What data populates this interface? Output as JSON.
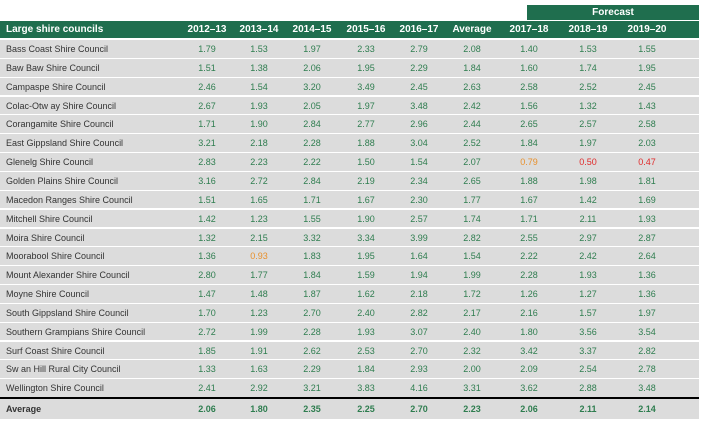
{
  "forecast_label": "Forecast",
  "header": {
    "name": "Large shire councils",
    "cols": [
      "2012–13",
      "2013–14",
      "2014–15",
      "2015–16",
      "2016–17",
      "Average",
      "2017–18",
      "2018–19",
      "2019–20"
    ]
  },
  "rows": [
    {
      "name": "Bass Coast Shire Council",
      "values": [
        "1.79",
        "1.53",
        "1.97",
        "2.33",
        "2.79",
        "2.08",
        "1.40",
        "1.53",
        "1.55"
      ]
    },
    {
      "name": "Baw  Baw  Shire Council",
      "values": [
        "1.51",
        "1.38",
        "2.06",
        "1.95",
        "2.29",
        "1.84",
        "1.60",
        "1.74",
        "1.95"
      ]
    },
    {
      "name": "Campaspe Shire Council",
      "values": [
        "2.46",
        "1.54",
        "3.20",
        "3.49",
        "2.45",
        "2.63",
        "2.58",
        "2.52",
        "2.45"
      ]
    },
    {
      "name": "Colac-Otw ay Shire Council",
      "values": [
        "2.67",
        "1.93",
        "2.05",
        "1.97",
        "3.48",
        "2.42",
        "1.56",
        "1.32",
        "1.43"
      ]
    },
    {
      "name": "Corangamite Shire Council",
      "values": [
        "1.71",
        "1.90",
        "2.84",
        "2.77",
        "2.96",
        "2.44",
        "2.65",
        "2.57",
        "2.58"
      ]
    },
    {
      "name": "East Gippsland Shire Council",
      "values": [
        "3.21",
        "2.18",
        "2.28",
        "1.88",
        "3.04",
        "2.52",
        "1.84",
        "1.97",
        "2.03"
      ]
    },
    {
      "name": "Glenelg Shire Council",
      "values": [
        "2.83",
        "2.23",
        "2.22",
        "1.50",
        "1.54",
        "2.07",
        "0.79",
        "0.50",
        "0.47"
      ],
      "flags": [
        "",
        "",
        "",
        "",
        "",
        "",
        "orange",
        "red",
        "red"
      ]
    },
    {
      "name": "Golden Plains Shire Council",
      "values": [
        "3.16",
        "2.72",
        "2.84",
        "2.19",
        "2.34",
        "2.65",
        "1.88",
        "1.98",
        "1.81"
      ]
    },
    {
      "name": "Macedon Ranges Shire Council",
      "values": [
        "1.51",
        "1.65",
        "1.71",
        "1.67",
        "2.30",
        "1.77",
        "1.67",
        "1.42",
        "1.69"
      ]
    },
    {
      "name": "Mitchell Shire Council",
      "values": [
        "1.42",
        "1.23",
        "1.55",
        "1.90",
        "2.57",
        "1.74",
        "1.71",
        "2.11",
        "1.93"
      ]
    },
    {
      "name": "Moira Shire Council",
      "values": [
        "1.32",
        "2.15",
        "3.32",
        "3.34",
        "3.99",
        "2.82",
        "2.55",
        "2.97",
        "2.87"
      ]
    },
    {
      "name": "Moorabool Shire Council",
      "values": [
        "1.36",
        "0.93",
        "1.83",
        "1.95",
        "1.64",
        "1.54",
        "2.22",
        "2.42",
        "2.64"
      ],
      "flags": [
        "",
        "orange",
        "",
        "",
        "",
        "",
        "",
        "",
        ""
      ]
    },
    {
      "name": "Mount Alexander Shire Council",
      "values": [
        "2.80",
        "1.77",
        "1.84",
        "1.59",
        "1.94",
        "1.99",
        "2.28",
        "1.93",
        "1.36"
      ]
    },
    {
      "name": "Moyne Shire Council",
      "values": [
        "1.47",
        "1.48",
        "1.87",
        "1.62",
        "2.18",
        "1.72",
        "1.26",
        "1.27",
        "1.36"
      ]
    },
    {
      "name": "South Gippsland Shire Council",
      "values": [
        "1.70",
        "1.23",
        "2.70",
        "2.40",
        "2.82",
        "2.17",
        "2.16",
        "1.57",
        "1.97"
      ]
    },
    {
      "name": "Southern Grampians Shire Council",
      "values": [
        "2.72",
        "1.99",
        "2.28",
        "1.93",
        "3.07",
        "2.40",
        "1.80",
        "3.56",
        "3.54"
      ]
    },
    {
      "name": "Surf Coast Shire Council",
      "values": [
        "1.85",
        "1.91",
        "2.62",
        "2.53",
        "2.70",
        "2.32",
        "3.42",
        "3.37",
        "2.82"
      ]
    },
    {
      "name": "Sw an Hill Rural City Council",
      "values": [
        "1.33",
        "1.63",
        "2.29",
        "1.84",
        "2.93",
        "2.00",
        "2.09",
        "2.54",
        "2.78"
      ]
    },
    {
      "name": "Wellington Shire Council",
      "values": [
        "2.41",
        "2.92",
        "3.21",
        "3.83",
        "4.16",
        "3.31",
        "3.62",
        "2.88",
        "3.48"
      ]
    }
  ],
  "average_row": {
    "name": "Average",
    "values": [
      "2.06",
      "1.80",
      "2.35",
      "2.25",
      "2.70",
      "2.23",
      "2.06",
      "2.11",
      "2.14"
    ]
  }
}
